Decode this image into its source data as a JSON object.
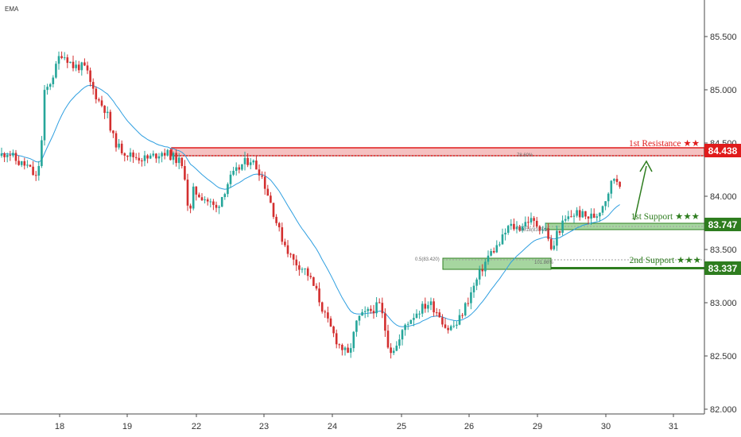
{
  "chart_data": {
    "type": "candlestick",
    "indicator_label": "EMA",
    "x_tick_labels": [
      "18",
      "19",
      "22",
      "23",
      "24",
      "25",
      "26",
      "29",
      "30",
      "31"
    ],
    "y_tick_labels": [
      "82.000",
      "82.500",
      "83.000",
      "83.500",
      "84.000",
      "84.500",
      "85.000",
      "85.500"
    ],
    "ylim": [
      82.0,
      85.9
    ],
    "levels": [
      {
        "name": "1st Resistance",
        "stars": "★★",
        "price": "84.438",
        "color": "#e01b1b"
      },
      {
        "name": "1st Support",
        "stars": "★★★",
        "price": "83.747",
        "color": "#2e7d1f"
      },
      {
        "name": "2nd Support",
        "stars": "★★★",
        "price": "83.337",
        "color": "#2e7d1f"
      }
    ],
    "annotations": [
      "78.60%",
      "0.5(83.420)",
      "101.86%",
      "0.618(83.701)"
    ],
    "waypoints": [
      [
        0,
        84.38
      ],
      [
        10,
        84.42
      ],
      [
        22,
        84.32
      ],
      [
        35,
        84.28
      ],
      [
        46,
        84.16
      ],
      [
        52,
        84.45
      ],
      [
        55,
        84.95
      ],
      [
        62,
        85.05
      ],
      [
        70,
        85.2
      ],
      [
        76,
        85.35
      ],
      [
        84,
        85.3
      ],
      [
        92,
        85.22
      ],
      [
        100,
        85.22
      ],
      [
        108,
        85.2
      ],
      [
        114,
        85.05
      ],
      [
        124,
        84.9
      ],
      [
        134,
        84.8
      ],
      [
        140,
        84.58
      ],
      [
        150,
        84.45
      ],
      [
        165,
        84.38
      ],
      [
        185,
        84.35
      ],
      [
        205,
        84.42
      ],
      [
        215,
        84.38
      ],
      [
        225,
        84.33
      ],
      [
        235,
        84.15
      ],
      [
        237,
        83.72
      ],
      [
        243,
        84.05
      ],
      [
        258,
        83.98
      ],
      [
        272,
        83.88
      ],
      [
        288,
        84.15
      ],
      [
        305,
        84.3
      ],
      [
        315,
        84.35
      ],
      [
        328,
        84.22
      ],
      [
        340,
        83.95
      ],
      [
        352,
        83.65
      ],
      [
        368,
        83.4
      ],
      [
        385,
        83.3
      ],
      [
        398,
        83.1
      ],
      [
        410,
        82.85
      ],
      [
        425,
        82.62
      ],
      [
        438,
        82.5
      ],
      [
        450,
        82.85
      ],
      [
        465,
        82.92
      ],
      [
        478,
        82.98
      ],
      [
        490,
        82.55
      ],
      [
        500,
        82.6
      ],
      [
        510,
        82.8
      ],
      [
        525,
        82.92
      ],
      [
        540,
        83.0
      ],
      [
        552,
        82.9
      ],
      [
        562,
        82.75
      ],
      [
        575,
        82.8
      ],
      [
        590,
        83.05
      ],
      [
        605,
        83.3
      ],
      [
        615,
        83.45
      ],
      [
        628,
        83.55
      ],
      [
        640,
        83.72
      ],
      [
        652,
        83.7
      ],
      [
        665,
        83.78
      ],
      [
        678,
        83.72
      ],
      [
        688,
        83.68
      ],
      [
        694,
        83.45
      ],
      [
        700,
        83.65
      ],
      [
        712,
        83.78
      ],
      [
        725,
        83.85
      ],
      [
        738,
        83.8
      ],
      [
        750,
        83.82
      ],
      [
        760,
        83.95
      ],
      [
        772,
        84.18
      ],
      [
        782,
        84.12
      ]
    ]
  }
}
